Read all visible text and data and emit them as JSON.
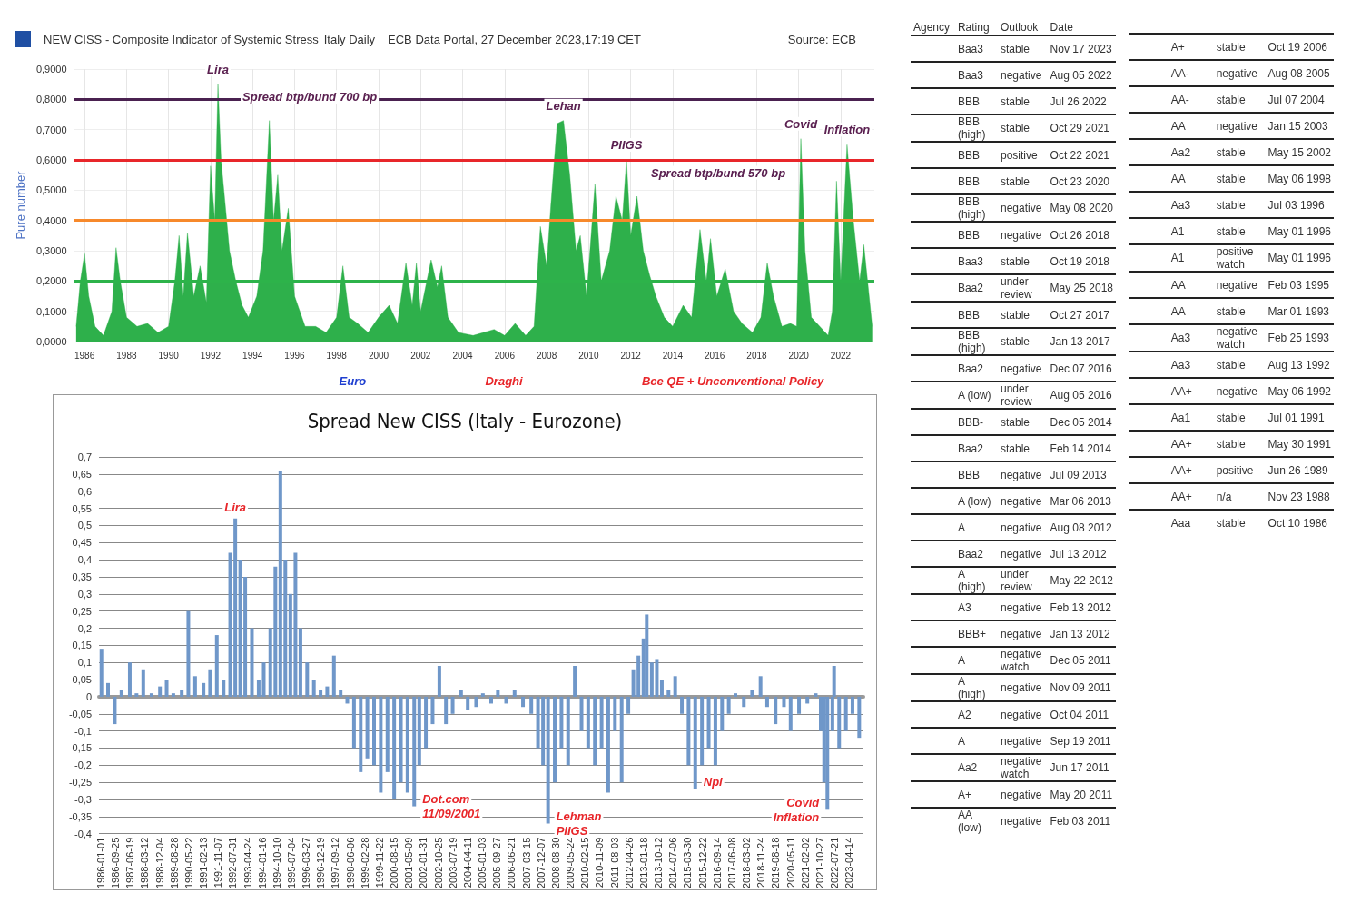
{
  "chart_data": [
    {
      "type": "area",
      "title": "NEW CISS - Composite Indicator of Systemic Stress",
      "subtitle": "Italy Daily",
      "ylabel": "Pure number",
      "grid": true,
      "marker": "none",
      "annotations": [
        "ECB Data Portal, 27 December 2023,17:19 CET",
        "Source: ECB",
        {
          "text": "Lira",
          "x": 1992.35,
          "y": 0.85
        },
        {
          "text": "Spread btp/bund 700 bp",
          "x": 1992.35,
          "y": 0.85
        },
        {
          "text": "Lehan",
          "x": 2008.8,
          "y": 0.73
        },
        {
          "text": "PIIGS",
          "x": 2011.8,
          "y": 0.6
        },
        {
          "text": "Spread btp/bund 570 bp",
          "x": 2011.8,
          "y": 0.6
        },
        {
          "text": "Covid",
          "x": 2020.1,
          "y": 0.67
        },
        {
          "text": "Inflation",
          "x": 2022.3,
          "y": 0.65
        },
        "Euro",
        "Draghi",
        "Bce QE + Unconventional Policy"
      ],
      "xlim": [
        1985.5,
        2023.6
      ],
      "xticks": [
        1986,
        1988,
        1990,
        1992,
        1994,
        1996,
        1998,
        2000,
        2002,
        2004,
        2006,
        2008,
        2010,
        2012,
        2014,
        2016,
        2018,
        2020,
        2022
      ],
      "ylim": [
        0,
        0.9
      ],
      "yticks": [
        {
          "value": 0,
          "label": "0,0000"
        },
        {
          "value": 0.1,
          "label": "0,1000"
        },
        {
          "value": 0.2,
          "label": "0,2000"
        },
        {
          "value": 0.3,
          "label": "0,3000"
        },
        {
          "value": 0.4,
          "label": "0,4000"
        },
        {
          "value": 0.5,
          "label": "0,5000"
        },
        {
          "value": 0.6,
          "label": "0,6000"
        },
        {
          "value": 0.7,
          "label": "0,7000"
        },
        {
          "value": 0.8,
          "label": "0,8000"
        },
        {
          "value": 0.9,
          "label": "0,9000"
        }
      ],
      "ref_lines": [
        {
          "axis": "y",
          "value": 0.8,
          "color": "#4a2150"
        },
        {
          "axis": "y",
          "value": 0.6,
          "color": "#e8262a"
        },
        {
          "axis": "y",
          "value": 0.4,
          "color": "#f7892b"
        },
        {
          "axis": "y",
          "value": 0.2,
          "color": "#2db34a"
        }
      ],
      "series": [
        {
          "color": "#2eb04b",
          "x": [
            1985.6,
            1985.8,
            1986.0,
            1986.2,
            1986.5,
            1986.9,
            1987.3,
            1987.5,
            1987.7,
            1988.0,
            1988.5,
            1989.0,
            1989.5,
            1990.0,
            1990.3,
            1990.5,
            1990.7,
            1990.9,
            1991.2,
            1991.5,
            1991.8,
            1992.0,
            1992.2,
            1992.35,
            1992.5,
            1992.7,
            1992.9,
            1993.2,
            1993.5,
            1993.8,
            1994.2,
            1994.5,
            1994.8,
            1995.0,
            1995.2,
            1995.4,
            1995.7,
            1996.0,
            1996.5,
            1997.0,
            1997.5,
            1998.0,
            1998.3,
            1998.6,
            1999.0,
            1999.5,
            2000.0,
            2000.5,
            2000.9,
            2001.3,
            2001.6,
            2001.8,
            2002.0,
            2002.5,
            2002.8,
            2003.0,
            2003.3,
            2003.8,
            2004.5,
            2005.0,
            2005.5,
            2006.0,
            2006.5,
            2007.0,
            2007.4,
            2007.7,
            2008.0,
            2008.2,
            2008.5,
            2008.8,
            2009.1,
            2009.4,
            2009.6,
            2009.9,
            2010.3,
            2010.6,
            2011.0,
            2011.3,
            2011.6,
            2011.8,
            2012.0,
            2012.3,
            2012.6,
            2012.9,
            2013.2,
            2013.6,
            2014.0,
            2014.5,
            2014.9,
            2015.3,
            2015.6,
            2015.8,
            2016.1,
            2016.5,
            2016.9,
            2017.3,
            2017.8,
            2018.2,
            2018.5,
            2018.8,
            2019.2,
            2019.6,
            2019.9,
            2020.1,
            2020.3,
            2020.6,
            2021.0,
            2021.4,
            2021.6,
            2021.8,
            2022.0,
            2022.3,
            2022.6,
            2022.9,
            2023.1,
            2023.5
          ],
          "values": [
            0.05,
            0.2,
            0.29,
            0.15,
            0.05,
            0.02,
            0.1,
            0.31,
            0.2,
            0.08,
            0.05,
            0.06,
            0.03,
            0.05,
            0.2,
            0.35,
            0.15,
            0.36,
            0.15,
            0.25,
            0.13,
            0.58,
            0.4,
            0.85,
            0.6,
            0.45,
            0.3,
            0.2,
            0.12,
            0.08,
            0.15,
            0.3,
            0.73,
            0.4,
            0.55,
            0.3,
            0.44,
            0.15,
            0.05,
            0.05,
            0.03,
            0.08,
            0.25,
            0.08,
            0.06,
            0.03,
            0.08,
            0.12,
            0.06,
            0.26,
            0.12,
            0.26,
            0.1,
            0.27,
            0.18,
            0.25,
            0.08,
            0.03,
            0.02,
            0.03,
            0.04,
            0.02,
            0.06,
            0.02,
            0.05,
            0.38,
            0.25,
            0.45,
            0.72,
            0.73,
            0.55,
            0.3,
            0.35,
            0.15,
            0.52,
            0.2,
            0.3,
            0.48,
            0.4,
            0.6,
            0.35,
            0.48,
            0.3,
            0.22,
            0.15,
            0.08,
            0.05,
            0.12,
            0.08,
            0.37,
            0.2,
            0.34,
            0.15,
            0.24,
            0.1,
            0.06,
            0.03,
            0.08,
            0.26,
            0.15,
            0.05,
            0.06,
            0.05,
            0.67,
            0.3,
            0.08,
            0.05,
            0.02,
            0.1,
            0.53,
            0.2,
            0.65,
            0.4,
            0.2,
            0.32,
            0.05
          ]
        }
      ]
    },
    {
      "type": "bar",
      "title": "Spread New CISS (Italy - Eurozone)",
      "grid": "y",
      "annotations": [
        {
          "text": "Lira",
          "x": "1992-09",
          "y": 0.52
        },
        {
          "text": "Dot.com",
          "x": "2001-08",
          "y": -0.32
        },
        {
          "text": "11/09/2001",
          "x": "2001-08",
          "y": -0.32
        },
        {
          "text": "Lehman",
          "x": "2008-04",
          "y": -0.37
        },
        {
          "text": "PIIGS",
          "x": "2008-04",
          "y": -0.37
        },
        {
          "text": "Npl",
          "x": "2015-08",
          "y": -0.27
        },
        {
          "text": "Covid",
          "x": "2022-03",
          "y": -0.33
        },
        {
          "text": "Inflation",
          "x": "2022-03",
          "y": -0.33
        }
      ],
      "xlim": [
        "1985-12-01",
        "2023-12-31"
      ],
      "xticks": [
        "1986-01-01",
        "1986-09-25",
        "1987-06-19",
        "1988-03-12",
        "1988-12-04",
        "1989-08-28",
        "1990-05-22",
        "1991-02-13",
        "1991-11-07",
        "1992-07-31",
        "1993-04-24",
        "1994-01-16",
        "1994-10-10",
        "1995-07-04",
        "1996-03-27",
        "1996-12-19",
        "1997-09-12",
        "1998-06-06",
        "1999-02-28",
        "1999-11-22",
        "2000-08-15",
        "2001-05-09",
        "2002-01-31",
        "2002-10-25",
        "2003-07-19",
        "2004-04-11",
        "2005-01-03",
        "2005-09-27",
        "2006-06-21",
        "2007-03-15",
        "2007-12-07",
        "2008-08-30",
        "2009-05-24",
        "2010-02-15",
        "2010-11-09",
        "2011-08-03",
        "2012-04-26",
        "2013-01-18",
        "2013-10-12",
        "2014-07-06",
        "2015-03-30",
        "2015-12-22",
        "2016-09-14",
        "2017-06-08",
        "2018-03-02",
        "2018-11-24",
        "2019-08-18",
        "2020-05-11",
        "2021-02-02",
        "2021-10-27",
        "2022-07-21",
        "2023-04-14"
      ],
      "ylim": [
        -0.4,
        0.7
      ],
      "yticks": [
        {
          "value": -0.4,
          "label": "-0,4"
        },
        {
          "value": -0.35,
          "label": "-0,35"
        },
        {
          "value": -0.3,
          "label": "-0,3"
        },
        {
          "value": -0.25,
          "label": "-0,25"
        },
        {
          "value": -0.2,
          "label": "-0,2"
        },
        {
          "value": -0.15,
          "label": "-0,15"
        },
        {
          "value": -0.1,
          "label": "-0,1"
        },
        {
          "value": -0.05,
          "label": "-0,05"
        },
        0,
        {
          "value": 0.05,
          "label": "0,05"
        },
        {
          "value": 0.1,
          "label": "0,1"
        },
        {
          "value": 0.15,
          "label": "0,15"
        },
        {
          "value": 0.2,
          "label": "0,2"
        },
        {
          "value": 0.25,
          "label": "0,25"
        },
        {
          "value": 0.3,
          "label": "0,3"
        },
        {
          "value": 0.35,
          "label": "0,35"
        },
        {
          "value": 0.4,
          "label": "0,4"
        },
        {
          "value": 0.45,
          "label": "0,45"
        },
        {
          "value": 0.5,
          "label": "0,5"
        },
        {
          "value": 0.55,
          "label": "0,55"
        },
        {
          "value": 0.6,
          "label": "0,6"
        },
        {
          "value": 0.65,
          "label": "0,65"
        },
        {
          "value": 0.7,
          "label": "0,7"
        }
      ],
      "series": [
        {
          "color": "#6f97c9",
          "x": [
            "1986-01",
            "1986-05",
            "1986-09",
            "1987-01",
            "1987-06",
            "1987-10",
            "1988-02",
            "1988-07",
            "1988-12",
            "1989-04",
            "1989-08",
            "1990-01",
            "1990-05",
            "1990-09",
            "1991-02",
            "1991-06",
            "1991-10",
            "1992-02",
            "1992-06",
            "1992-09",
            "1992-12",
            "1993-03",
            "1993-07",
            "1993-11",
            "1994-02",
            "1994-06",
            "1994-09",
            "1994-12",
            "1995-03",
            "1995-06",
            "1995-09",
            "1995-12",
            "1996-04",
            "1996-08",
            "1996-12",
            "1997-04",
            "1997-08",
            "1997-12",
            "1998-04",
            "1998-08",
            "1998-12",
            "1999-04",
            "1999-08",
            "1999-12",
            "2000-04",
            "2000-08",
            "2000-12",
            "2001-04",
            "2001-08",
            "2001-11",
            "2002-03",
            "2002-07",
            "2002-11",
            "2003-03",
            "2003-07",
            "2003-12",
            "2004-04",
            "2004-09",
            "2005-01",
            "2005-06",
            "2005-10",
            "2006-03",
            "2006-08",
            "2007-01",
            "2007-06",
            "2007-10",
            "2008-01",
            "2008-04",
            "2008-08",
            "2008-12",
            "2009-04",
            "2009-08",
            "2009-12",
            "2010-04",
            "2010-08",
            "2010-12",
            "2011-04",
            "2011-08",
            "2011-12",
            "2012-04",
            "2012-07",
            "2012-10",
            "2013-01",
            "2013-03",
            "2013-06",
            "2013-09",
            "2013-12",
            "2014-04",
            "2014-08",
            "2014-12",
            "2015-04",
            "2015-08",
            "2015-12",
            "2016-04",
            "2016-08",
            "2016-12",
            "2017-04",
            "2017-08",
            "2018-01",
            "2018-06",
            "2018-11",
            "2019-03",
            "2019-08",
            "2020-01",
            "2020-05",
            "2020-10",
            "2021-03",
            "2021-08",
            "2021-11",
            "2022-01",
            "2022-03",
            "2022-06",
            "2022-07",
            "2022-10",
            "2023-02",
            "2023-06",
            "2023-10"
          ],
          "values": [
            0.14,
            0.04,
            -0.08,
            0.02,
            0.1,
            0.01,
            0.08,
            0.01,
            0.03,
            0.05,
            0.01,
            0.02,
            0.25,
            0.06,
            0.04,
            0.08,
            0.18,
            0.05,
            0.42,
            0.52,
            0.4,
            0.35,
            0.2,
            0.05,
            0.1,
            0.2,
            0.38,
            0.66,
            0.4,
            0.3,
            0.42,
            0.2,
            0.1,
            0.05,
            0.02,
            0.03,
            0.12,
            0.02,
            -0.02,
            -0.15,
            -0.22,
            -0.18,
            -0.2,
            -0.28,
            -0.22,
            -0.3,
            -0.25,
            -0.28,
            -0.32,
            -0.2,
            -0.15,
            -0.08,
            0.09,
            -0.08,
            -0.05,
            0.02,
            -0.04,
            -0.03,
            0.01,
            -0.02,
            0.02,
            -0.02,
            0.02,
            -0.03,
            -0.05,
            -0.15,
            -0.2,
            -0.37,
            -0.25,
            -0.15,
            -0.2,
            0.09,
            -0.1,
            -0.15,
            -0.2,
            -0.15,
            -0.28,
            -0.1,
            -0.25,
            -0.05,
            0.08,
            0.12,
            0.17,
            0.24,
            0.1,
            0.11,
            0.05,
            0.02,
            0.06,
            -0.05,
            -0.2,
            -0.27,
            -0.2,
            -0.15,
            -0.2,
            -0.1,
            -0.05,
            0.01,
            -0.03,
            0.02,
            0.06,
            -0.03,
            -0.08,
            -0.03,
            -0.1,
            -0.05,
            -0.02,
            0.01,
            -0.1,
            -0.25,
            -0.33,
            -0.1,
            0.09,
            -0.15,
            -0.1,
            -0.05,
            -0.12
          ]
        }
      ]
    },
    {
      "type": "other",
      "categories": [
        "Agency",
        "Rating",
        "Outlook",
        "Date"
      ],
      "annotations": [
        "Baa3",
        "stable",
        "Nov 17 2023",
        "Baa3",
        "negative",
        "Aug 05 2022",
        "BBB",
        "stable",
        "Jul 26 2022",
        "BBB (high)",
        "stable",
        "Oct 29 2021",
        "BBB",
        "positive",
        "Oct 22 2021",
        "BBB",
        "stable",
        "Oct 23 2020",
        "BBB (high)",
        "negative",
        "May 08 2020",
        "BBB",
        "negative",
        "Oct 26 2018",
        "Baa3",
        "stable",
        "Oct 19 2018",
        "Baa2",
        "under review",
        "May 25 2018",
        "BBB",
        "stable",
        "Oct 27 2017",
        "BBB (high)",
        "stable",
        "Jan 13 2017",
        "Baa2",
        "negative",
        "Dec 07 2016",
        "A (low)",
        "under review",
        "Aug 05 2016",
        "BBB-",
        "stable",
        "Dec 05 2014",
        "Baa2",
        "stable",
        "Feb 14 2014",
        "BBB",
        "negative",
        "Jul 09 2013",
        "A (low)",
        "negative",
        "Mar 06 2013",
        "A",
        "negative",
        "Aug 08 2012",
        "Baa2",
        "negative",
        "Jul 13 2012",
        "A (high)",
        "under review",
        "May 22 2012",
        "A3",
        "negative",
        "Feb 13 2012",
        "BBB+",
        "negative",
        "Jan 13 2012",
        "A",
        "negative watch",
        "Dec 05 2011",
        "A (high)",
        "negative",
        "Nov 09 2011",
        "A2",
        "negative",
        "Oct 04 2011",
        "A",
        "negative",
        "Sep 19 2011",
        "Aa2",
        "negative watch",
        "Jun 17 2011",
        "A+",
        "negative",
        "May 20 2011",
        "AA (low)",
        "negative",
        "Feb 03 2011",
        "A+",
        "stable",
        "Oct 19 2006",
        "AA-",
        "negative",
        "Aug 08 2005",
        "AA-",
        "stable",
        "Jul 07 2004",
        "AA",
        "negative",
        "Jan 15 2003",
        "Aa2",
        "stable",
        "May 15 2002",
        "AA",
        "stable",
        "May 06 1998",
        "Aa3",
        "stable",
        "Jul 03 1996",
        "A1",
        "stable",
        "May 01 1996",
        "A1",
        "positive watch",
        "May 01 1996",
        "AA",
        "negative",
        "Feb 03 1995",
        "AA",
        "stable",
        "Mar 01 1993",
        "Aa3",
        "negative watch",
        "Feb 25 1993",
        "Aa3",
        "stable",
        "Aug 13 1992",
        "AA+",
        "negative",
        "May 06 1992",
        "Aa1",
        "stable",
        "Jul 01 1991",
        "AA+",
        "stable",
        "May 30 1991",
        "AA+",
        "positive",
        "Jun 26 1989",
        "AA+",
        "n/a",
        "Nov 23 1988",
        "Aaa",
        "stable",
        "Oct 10 1986"
      ]
    }
  ]
}
